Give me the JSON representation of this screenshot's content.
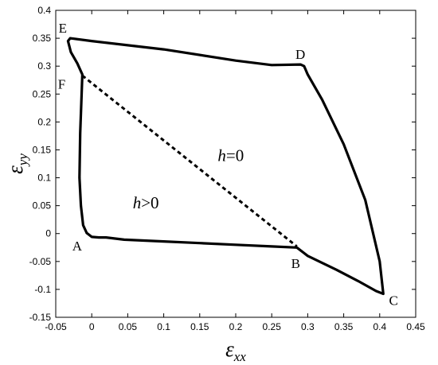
{
  "chart_data": {
    "type": "line",
    "xlabel": {
      "main": "ε",
      "sub": "xx"
    },
    "ylabel": {
      "main": "ε",
      "sub": "yy"
    },
    "xlim": [
      -0.05,
      0.45
    ],
    "ylim": [
      -0.15,
      0.4
    ],
    "grid": false,
    "xticks": [
      "-0.05",
      "0",
      "0.05",
      "0.1",
      "0.15",
      "0.2",
      "0.25",
      "0.3",
      "0.35",
      "0.4",
      "0.45"
    ],
    "yticks": [
      "-0.15",
      "-0.1",
      "-0.05",
      "0",
      "0.05",
      "0.1",
      "0.15",
      "0.2",
      "0.25",
      "0.3",
      "0.35",
      "0.4"
    ],
    "series": [
      {
        "style": "solid",
        "color": "#000000",
        "x": [
          -0.007,
          -0.005,
          0.0,
          0.01,
          0.02,
          0.045,
          0.1,
          0.15,
          0.2,
          0.25,
          0.285,
          0.3,
          0.34,
          0.37,
          0.395,
          0.405,
          0.4,
          0.38,
          0.35,
          0.32,
          0.3,
          0.295,
          0.29,
          0.25,
          0.2,
          0.1,
          0.0,
          -0.03,
          -0.033,
          -0.029,
          -0.02,
          -0.013,
          -0.014,
          -0.016,
          -0.017,
          -0.015,
          -0.012,
          -0.007
        ],
        "y": [
          0.001,
          -0.001,
          -0.006,
          -0.007,
          -0.007,
          -0.011,
          -0.014,
          -0.017,
          -0.02,
          -0.023,
          -0.025,
          -0.04,
          -0.065,
          -0.085,
          -0.103,
          -0.108,
          -0.05,
          0.06,
          0.16,
          0.24,
          0.285,
          0.3,
          0.303,
          0.302,
          0.31,
          0.33,
          0.345,
          0.35,
          0.345,
          0.325,
          0.305,
          0.285,
          0.25,
          0.18,
          0.1,
          0.05,
          0.015,
          0.001
        ]
      },
      {
        "style": "dashed",
        "color": "#000000",
        "x": [
          -0.013,
          0.285
        ],
        "y": [
          0.283,
          -0.023
        ]
      }
    ],
    "point_labels": [
      {
        "text": "A",
        "x": -0.027,
        "y": -0.03
      },
      {
        "text": "B",
        "x": 0.277,
        "y": -0.062
      },
      {
        "text": "C",
        "x": 0.413,
        "y": -0.128
      },
      {
        "text": "D",
        "x": 0.283,
        "y": 0.313
      },
      {
        "text": "E",
        "x": -0.046,
        "y": 0.36
      },
      {
        "text": "F",
        "x": -0.047,
        "y": 0.26
      }
    ],
    "region_labels": [
      {
        "italic": "h",
        "rest": "=0",
        "x": 0.175,
        "y": 0.13
      },
      {
        "italic": "h",
        "rest": ">0",
        "x": 0.057,
        "y": 0.045
      }
    ]
  }
}
